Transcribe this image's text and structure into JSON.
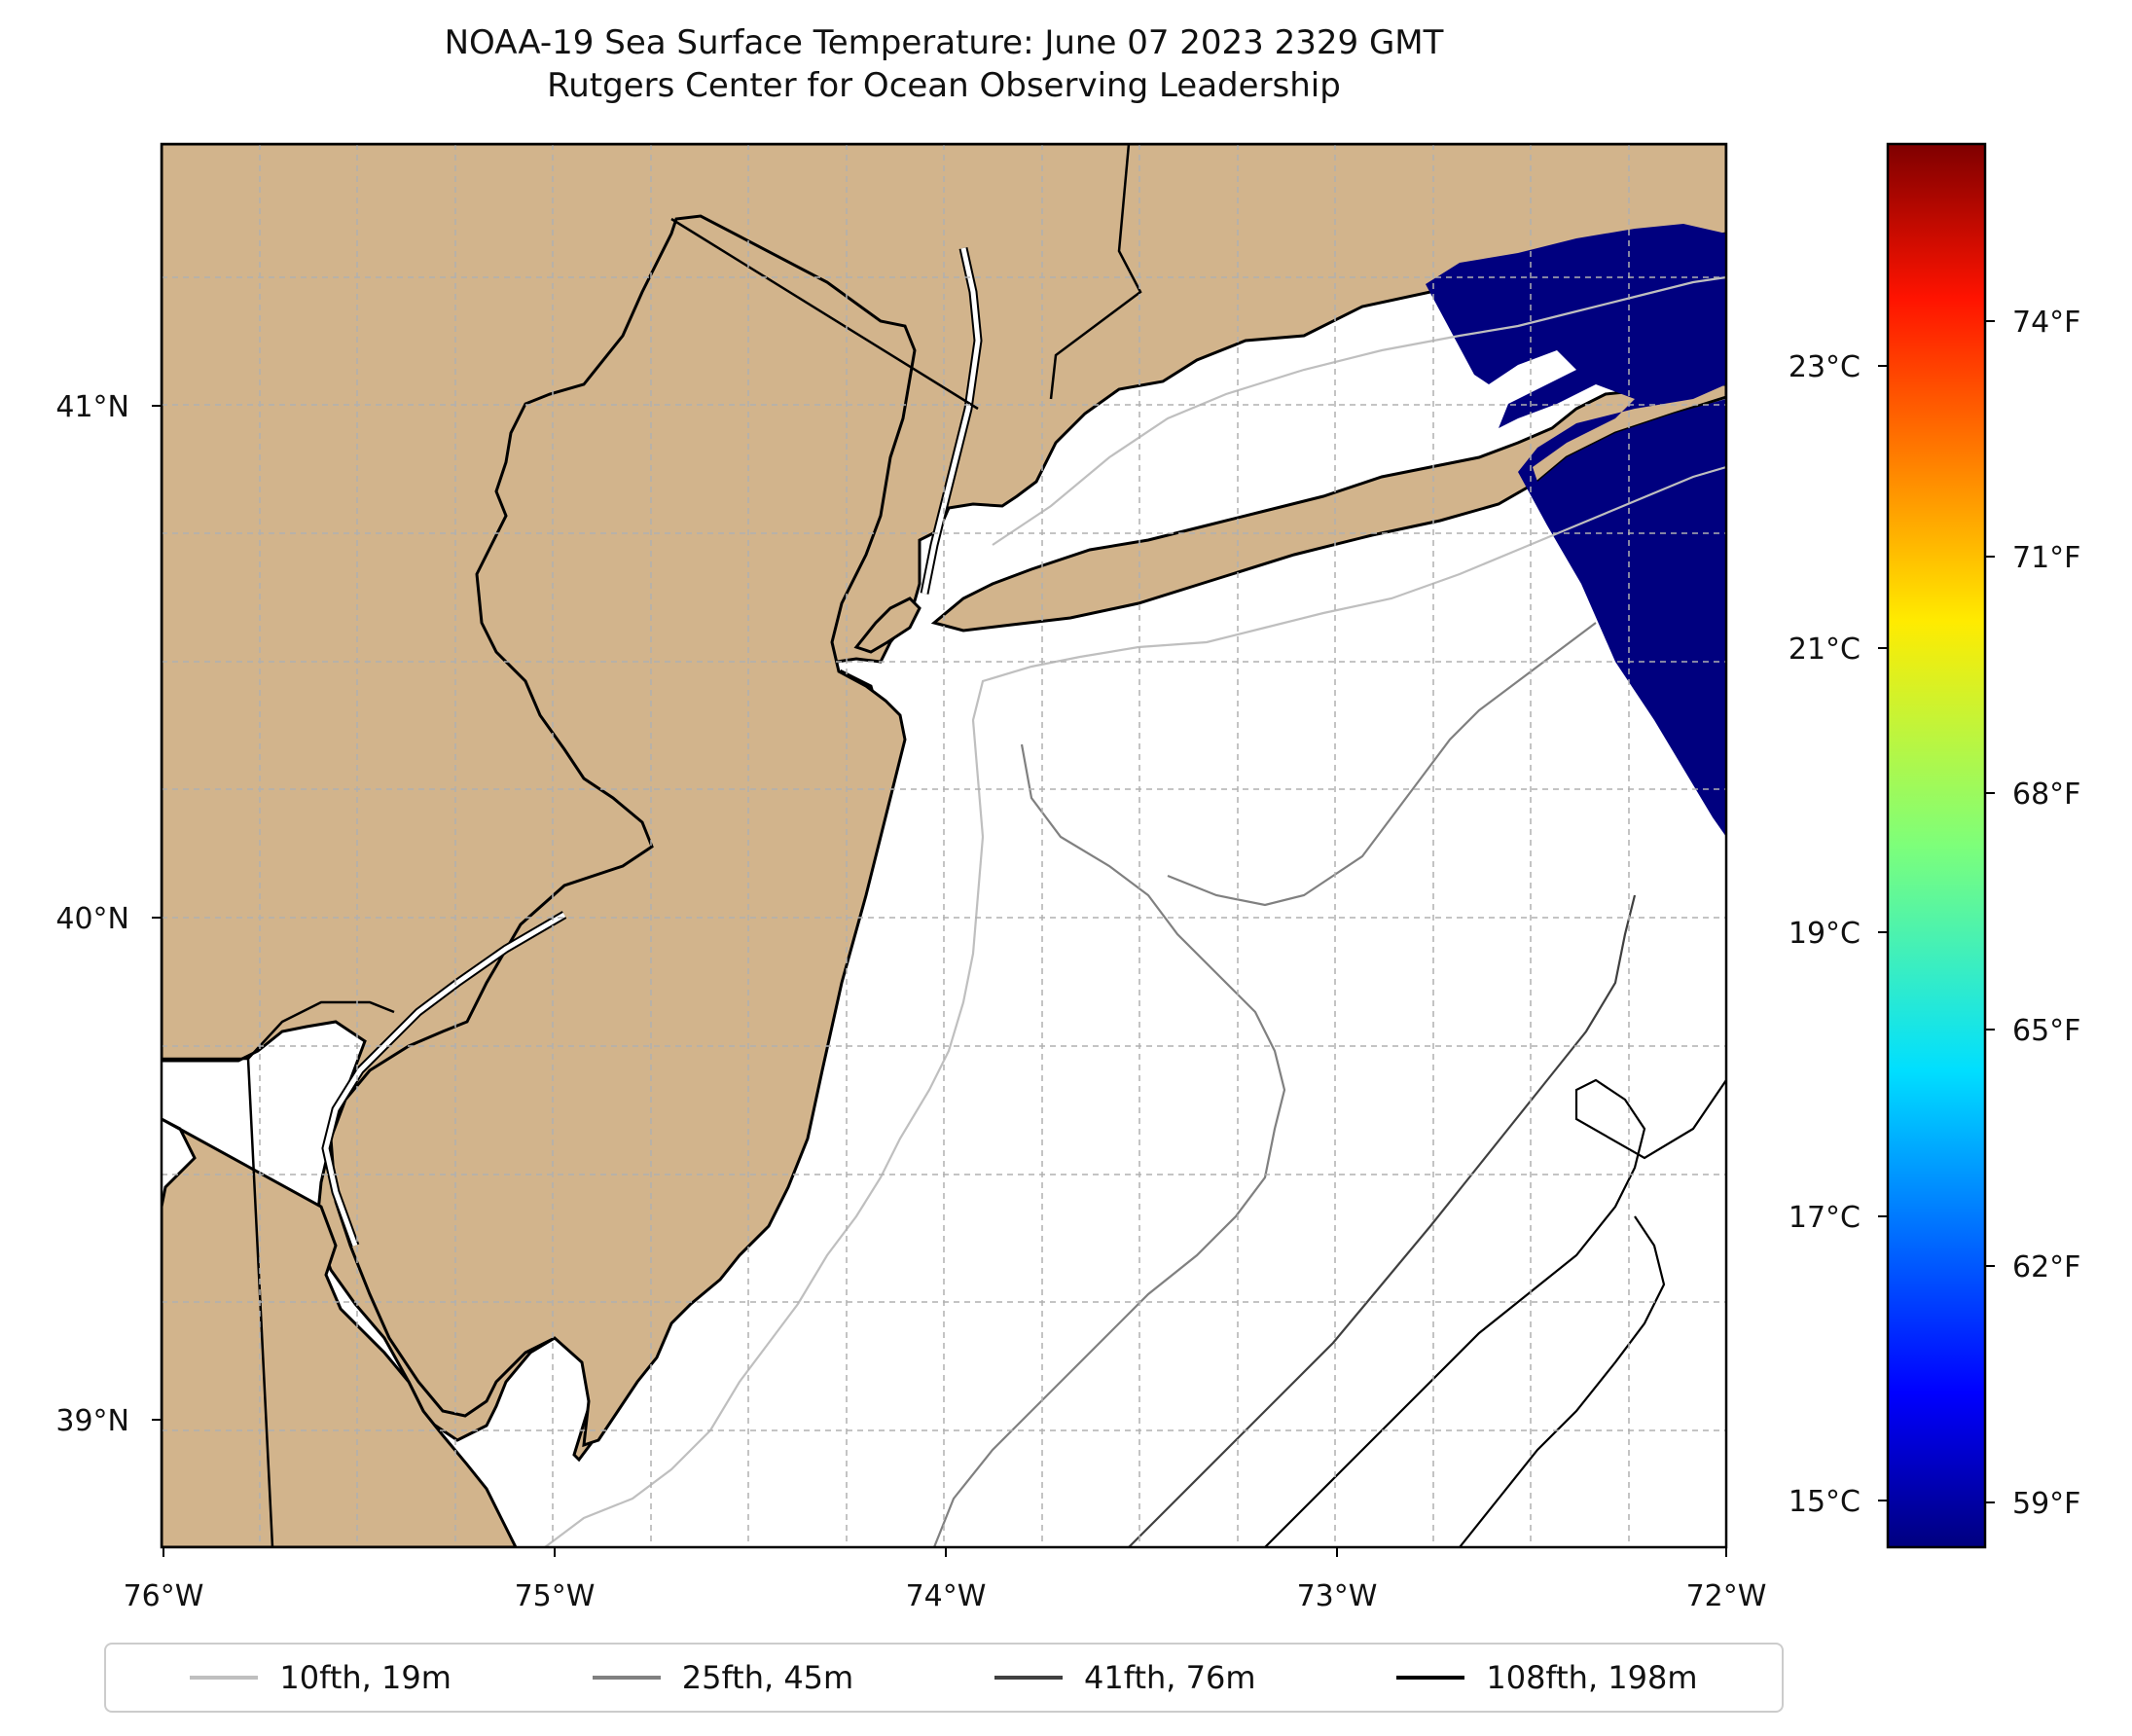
{
  "title": {
    "line1": "NOAA-19 Sea Surface Temperature: June 07 2023 2329 GMT",
    "line2": "Rutgers Center for Ocean Observing Leadership"
  },
  "map": {
    "lon_range": [
      -76,
      -72
    ],
    "lat_range": [
      38.73,
      41.52
    ],
    "lon_ticks": [
      "76°W",
      "75°W",
      "74°W",
      "73°W",
      "72°W"
    ],
    "lat_ticks": [
      "41°N",
      "40°N",
      "39°N"
    ],
    "land_color": "#d2b48c",
    "ocean_color": "#ffffff",
    "sst_swath_color": "#00007f",
    "gridlines": true
  },
  "colorbar": {
    "colormap": "jet",
    "celsius_ticks": [
      "23°C",
      "21°C",
      "19°C",
      "17°C",
      "15°C"
    ],
    "fahrenheit_ticks": [
      "74°F",
      "71°F",
      "68°F",
      "65°F",
      "62°F",
      "59°F"
    ]
  },
  "legend": [
    {
      "label": "10fth, 19m",
      "color": "#bfbfbf"
    },
    {
      "label": "25fth, 45m",
      "color": "#808080"
    },
    {
      "label": "41fth, 76m",
      "color": "#404040"
    },
    {
      "label": "108fth, 198m",
      "color": "#000000"
    }
  ]
}
